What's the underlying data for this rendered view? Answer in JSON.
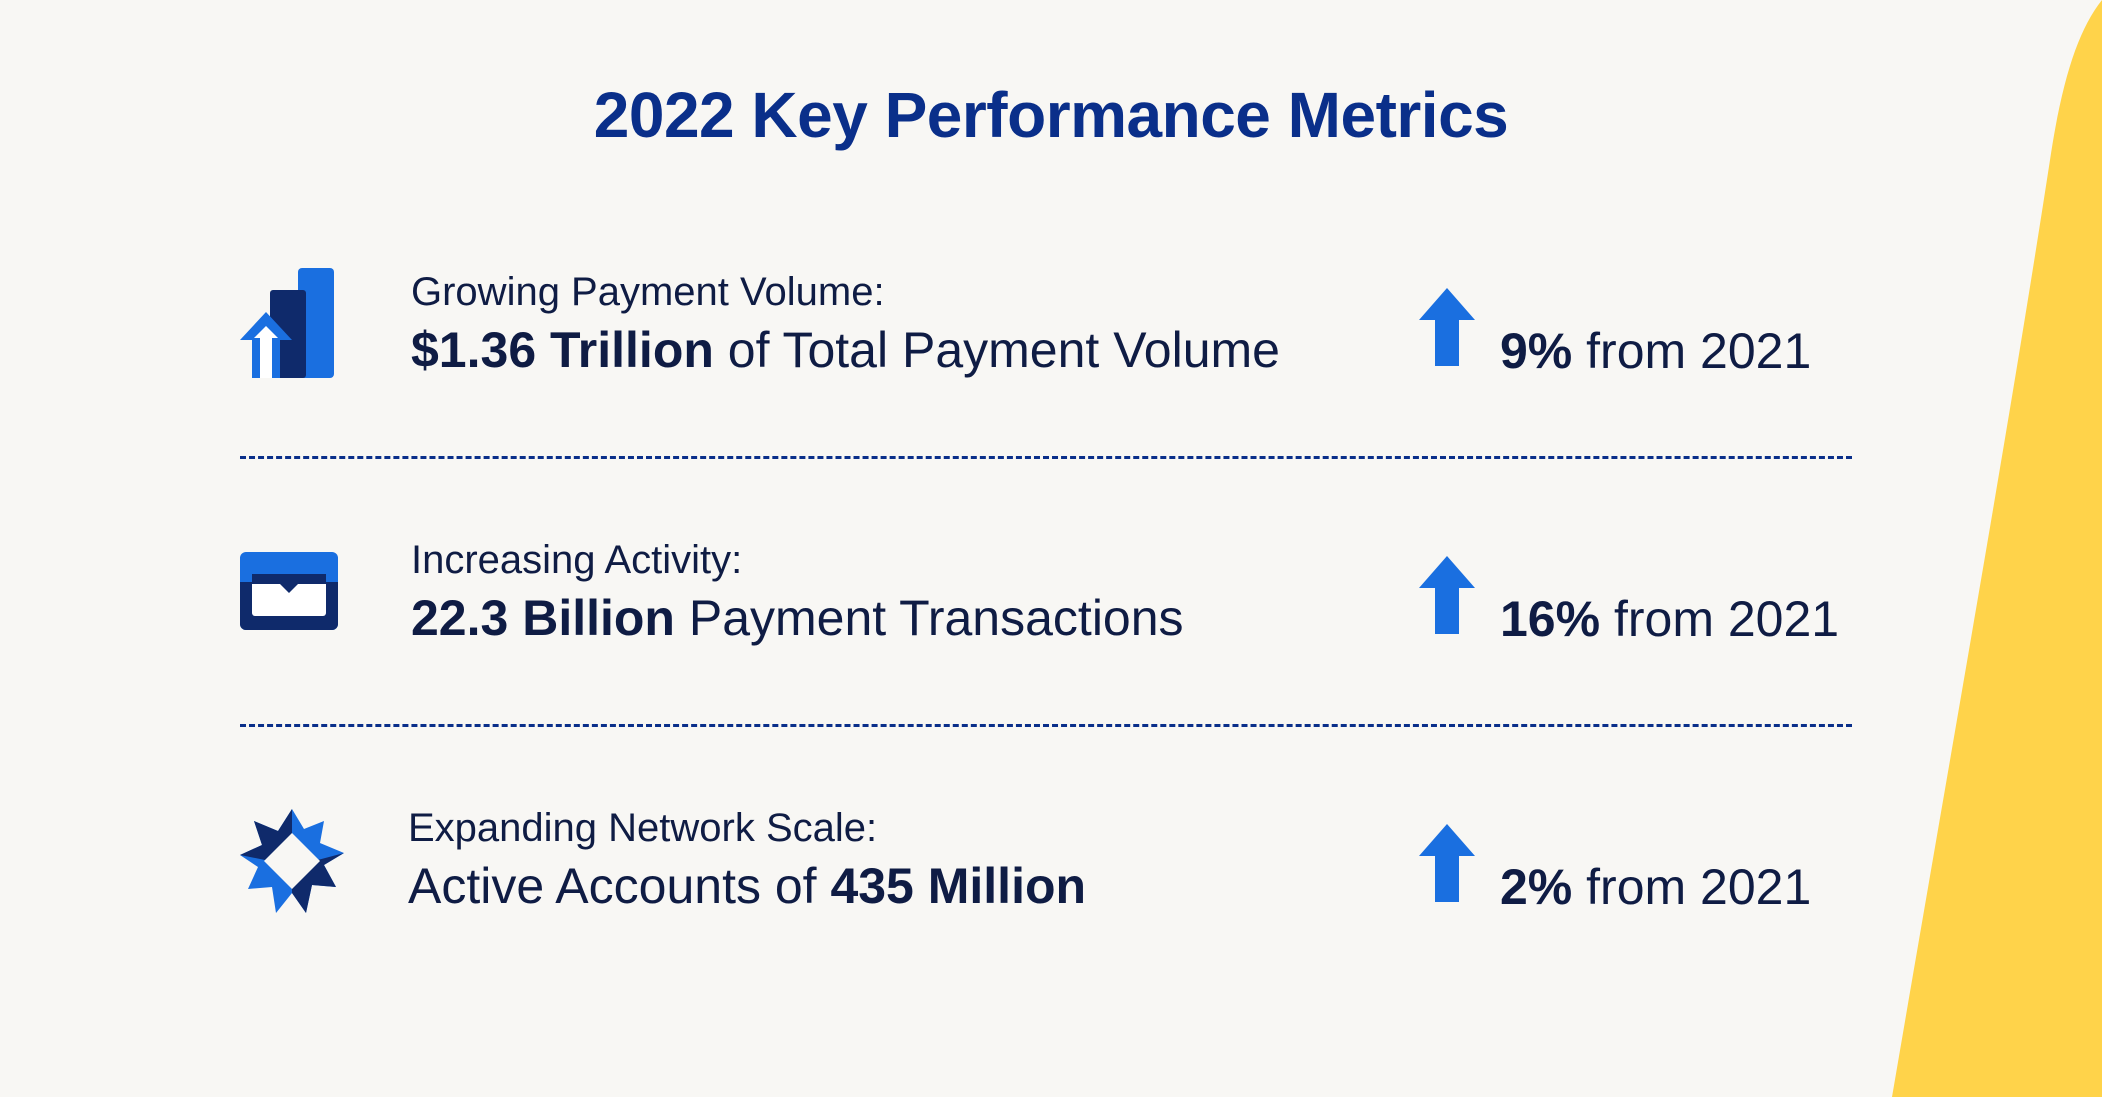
{
  "title": "2022 Key Performance Metrics",
  "colors": {
    "background": "#f8f7f4",
    "title": "#0a2f8a",
    "text": "#0f1c44",
    "accent_blue": "#1a6fe0",
    "dark_navy": "#0f2a6b",
    "yellow": "#ffd34a"
  },
  "metrics": [
    {
      "icon": "bar-chart-up-icon",
      "label": "Growing Payment Volume:",
      "metric_bold": "$1.36 Trillion",
      "metric_rest": " of Total Payment Volume",
      "change_bold": "9%",
      "change_rest": " from 2021"
    },
    {
      "icon": "wallet-card-icon",
      "label": "Increasing Activity:",
      "metric_bold": "22.3 Billion",
      "metric_rest": " Payment Transactions",
      "change_bold": "16%",
      "change_rest": " from 2021"
    },
    {
      "icon": "network-star-icon",
      "label": "Expanding Network Scale:",
      "metric_prefix": "Active Accounts of ",
      "metric_bold": "435 Million",
      "change_bold": "2%",
      "change_rest": " from 2021"
    }
  ]
}
